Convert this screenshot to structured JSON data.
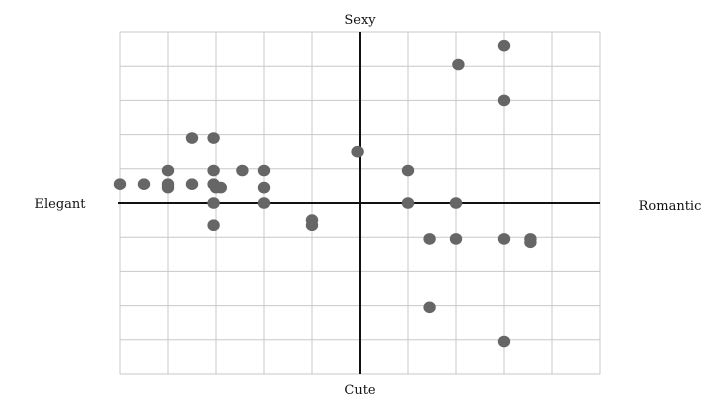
{
  "chart_data": {
    "type": "scatter",
    "title": "",
    "axis_labels": {
      "top": "Sexy",
      "bottom": "Cute",
      "left": "Elegant",
      "right": "Romantic"
    },
    "xlim": [
      -5,
      5
    ],
    "ylim": [
      -5,
      5
    ],
    "grid": true,
    "point_color": "#666666",
    "grid_color": "#c8c8c8",
    "axis_color": "#111111",
    "points": [
      {
        "x": 3.0,
        "y": 4.6
      },
      {
        "x": 2.05,
        "y": 4.05
      },
      {
        "x": 3.0,
        "y": 3.0
      },
      {
        "x": -3.5,
        "y": 1.9
      },
      {
        "x": -3.05,
        "y": 1.9
      },
      {
        "x": -0.05,
        "y": 1.5
      },
      {
        "x": -4.0,
        "y": 0.95
      },
      {
        "x": -3.05,
        "y": 0.95
      },
      {
        "x": -2.45,
        "y": 0.95
      },
      {
        "x": -2.0,
        "y": 0.95
      },
      {
        "x": 1.0,
        "y": 0.95
      },
      {
        "x": -5.0,
        "y": 0.55
      },
      {
        "x": -4.5,
        "y": 0.55
      },
      {
        "x": -4.0,
        "y": 0.55
      },
      {
        "x": -3.5,
        "y": 0.55
      },
      {
        "x": -3.05,
        "y": 0.55
      },
      {
        "x": -4.0,
        "y": 0.45
      },
      {
        "x": -3.0,
        "y": 0.45
      },
      {
        "x": -2.9,
        "y": 0.45
      },
      {
        "x": -2.0,
        "y": 0.45
      },
      {
        "x": -3.05,
        "y": 0.0
      },
      {
        "x": -2.0,
        "y": 0.0
      },
      {
        "x": 1.0,
        "y": 0.0
      },
      {
        "x": 2.0,
        "y": 0.0
      },
      {
        "x": -1.0,
        "y": -0.5
      },
      {
        "x": -3.05,
        "y": -0.65
      },
      {
        "x": -1.0,
        "y": -0.65
      },
      {
        "x": 1.45,
        "y": -1.05
      },
      {
        "x": 2.0,
        "y": -1.05
      },
      {
        "x": 3.0,
        "y": -1.05
      },
      {
        "x": 3.55,
        "y": -1.05
      },
      {
        "x": 3.55,
        "y": -1.15
      },
      {
        "x": 1.45,
        "y": -3.05
      },
      {
        "x": 3.0,
        "y": -4.05
      }
    ]
  }
}
